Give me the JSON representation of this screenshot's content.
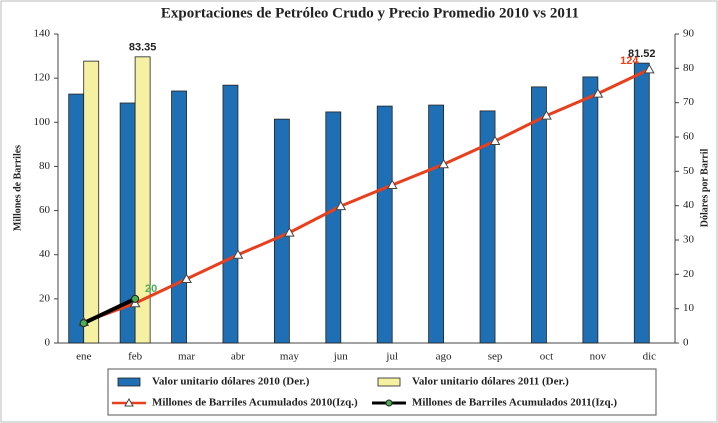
{
  "chart_data": {
    "type": "bar-line",
    "title": "Exportaciones de Petróleo Crudo y Precio Promedio 2010 vs 2011",
    "y_label": "Millones de Barriles",
    "y2_label": "Dólares por Barril",
    "categories": [
      "ene",
      "feb",
      "mar",
      "abr",
      "may",
      "jun",
      "jul",
      "ago",
      "sep",
      "oct",
      "nov",
      "dic"
    ],
    "ylim": [
      0,
      140
    ],
    "yticks": [
      0,
      20,
      40,
      60,
      80,
      100,
      120,
      140
    ],
    "y2lim": [
      0,
      90
    ],
    "y2ticks": [
      0,
      10,
      20,
      30,
      40,
      50,
      60,
      70,
      80,
      90
    ],
    "series": [
      {
        "name": "Valor unitario dólares 2010 (Der.)",
        "kind": "bar",
        "axis": "y2",
        "color": "#1f6fb5",
        "values": [
          72.5,
          69.9,
          73.4,
          75.1,
          65.2,
          67.3,
          69.0,
          69.3,
          67.6,
          74.6,
          77.5,
          81.52
        ],
        "value_labels": [
          null,
          null,
          null,
          null,
          null,
          null,
          null,
          null,
          null,
          null,
          null,
          "81.52"
        ]
      },
      {
        "name": "Valor unitario dólares 2011 (Der.)",
        "kind": "bar",
        "axis": "y2",
        "color": "#f6f1a2",
        "values": [
          82.1,
          83.35,
          null,
          null,
          null,
          null,
          null,
          null,
          null,
          null,
          null,
          null
        ],
        "value_labels": [
          null,
          "83.35",
          null,
          null,
          null,
          null,
          null,
          null,
          null,
          null,
          null,
          null
        ]
      },
      {
        "name": "Millones de Barriles Acumulados 2010(Izq.)",
        "kind": "line",
        "color": "#e8401c",
        "values": [
          9.5,
          18,
          29,
          40,
          50,
          62,
          71.6,
          81,
          91.5,
          103,
          113,
          124
        ],
        "value_labels": [
          null,
          null,
          null,
          null,
          null,
          null,
          null,
          null,
          null,
          null,
          null,
          "124"
        ]
      },
      {
        "name": "Millones de Barriles Acumulados 2011(Izq.)",
        "kind": "line",
        "color": "#000000",
        "values": [
          9,
          20,
          null,
          null,
          null,
          null,
          null,
          null,
          null,
          null,
          null,
          null
        ],
        "value_labels": [
          null,
          "20",
          null,
          null,
          null,
          null,
          null,
          null,
          null,
          null,
          null,
          null
        ]
      }
    ]
  }
}
